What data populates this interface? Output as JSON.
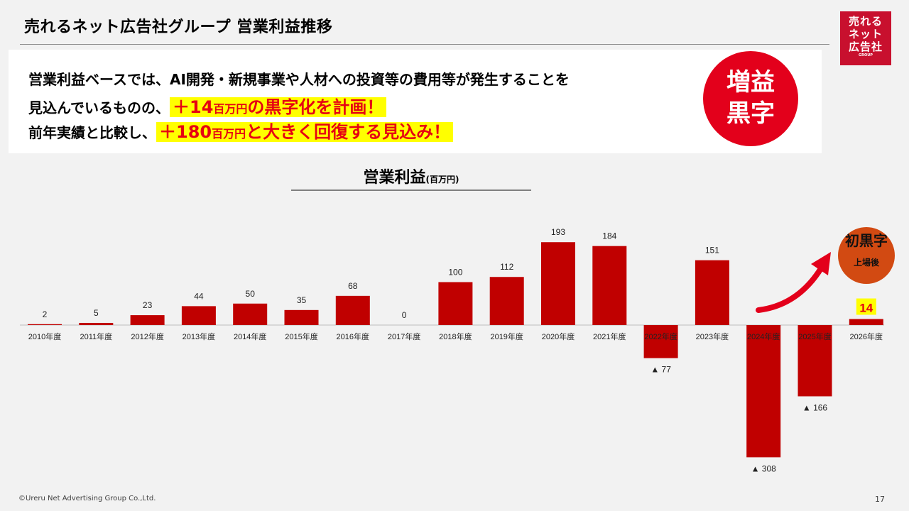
{
  "header": {
    "title": "売れるネット広告社グループ 営業利益推移",
    "logo_lines": [
      "売れる",
      "ネット",
      "広告社",
      "GROUP"
    ]
  },
  "message": {
    "line1": "営業利益ベースでは、AI開発・新規事業や人材への投資等の費用等が発生することを",
    "line2_prefix": "見込んでいるものの、",
    "line2_hl_a": "＋14",
    "line2_hl_unit": "百万円",
    "line2_hl_b": "の黒字化を計画！",
    "line3_prefix": "前年実績と比較し、",
    "line3_hl_a": "＋180",
    "line3_hl_unit": "百万円",
    "line3_hl_b": "と大きく回復する見込み！",
    "badge_line1": "増益",
    "badge_line2": "黒字"
  },
  "seal": {
    "text_top": "上場後",
    "text_main": "初黒字"
  },
  "chart_data": {
    "type": "bar",
    "title": "営業利益",
    "unit": "(百万円)",
    "categories": [
      "2010年度",
      "2011年度",
      "2012年度",
      "2013年度",
      "2014年度",
      "2015年度",
      "2016年度",
      "2017年度",
      "2018年度",
      "2019年度",
      "2020年度",
      "2021年度",
      "2022年度",
      "2023年度",
      "2024年度",
      "2025年度",
      "2026年度"
    ],
    "values": [
      2,
      5,
      23,
      44,
      50,
      35,
      68,
      0,
      100,
      112,
      193,
      184,
      -77,
      151,
      -308,
      -166,
      14
    ],
    "labels": [
      "2",
      "5",
      "23",
      "44",
      "50",
      "35",
      "68",
      "0",
      "100",
      "112",
      "193",
      "184",
      "▲ 77",
      "151",
      "▲ 308",
      "▲ 166",
      "14"
    ],
    "highlight_index": 16,
    "colors": {
      "bar": "#c00000",
      "highlight_label_bg": "#ffff00",
      "highlight_label_text": "#e60012",
      "arrow": "#e3001b"
    }
  },
  "footer": {
    "copyright": "©Ureru Net Advertising Group Co.,Ltd.",
    "page": "17"
  }
}
